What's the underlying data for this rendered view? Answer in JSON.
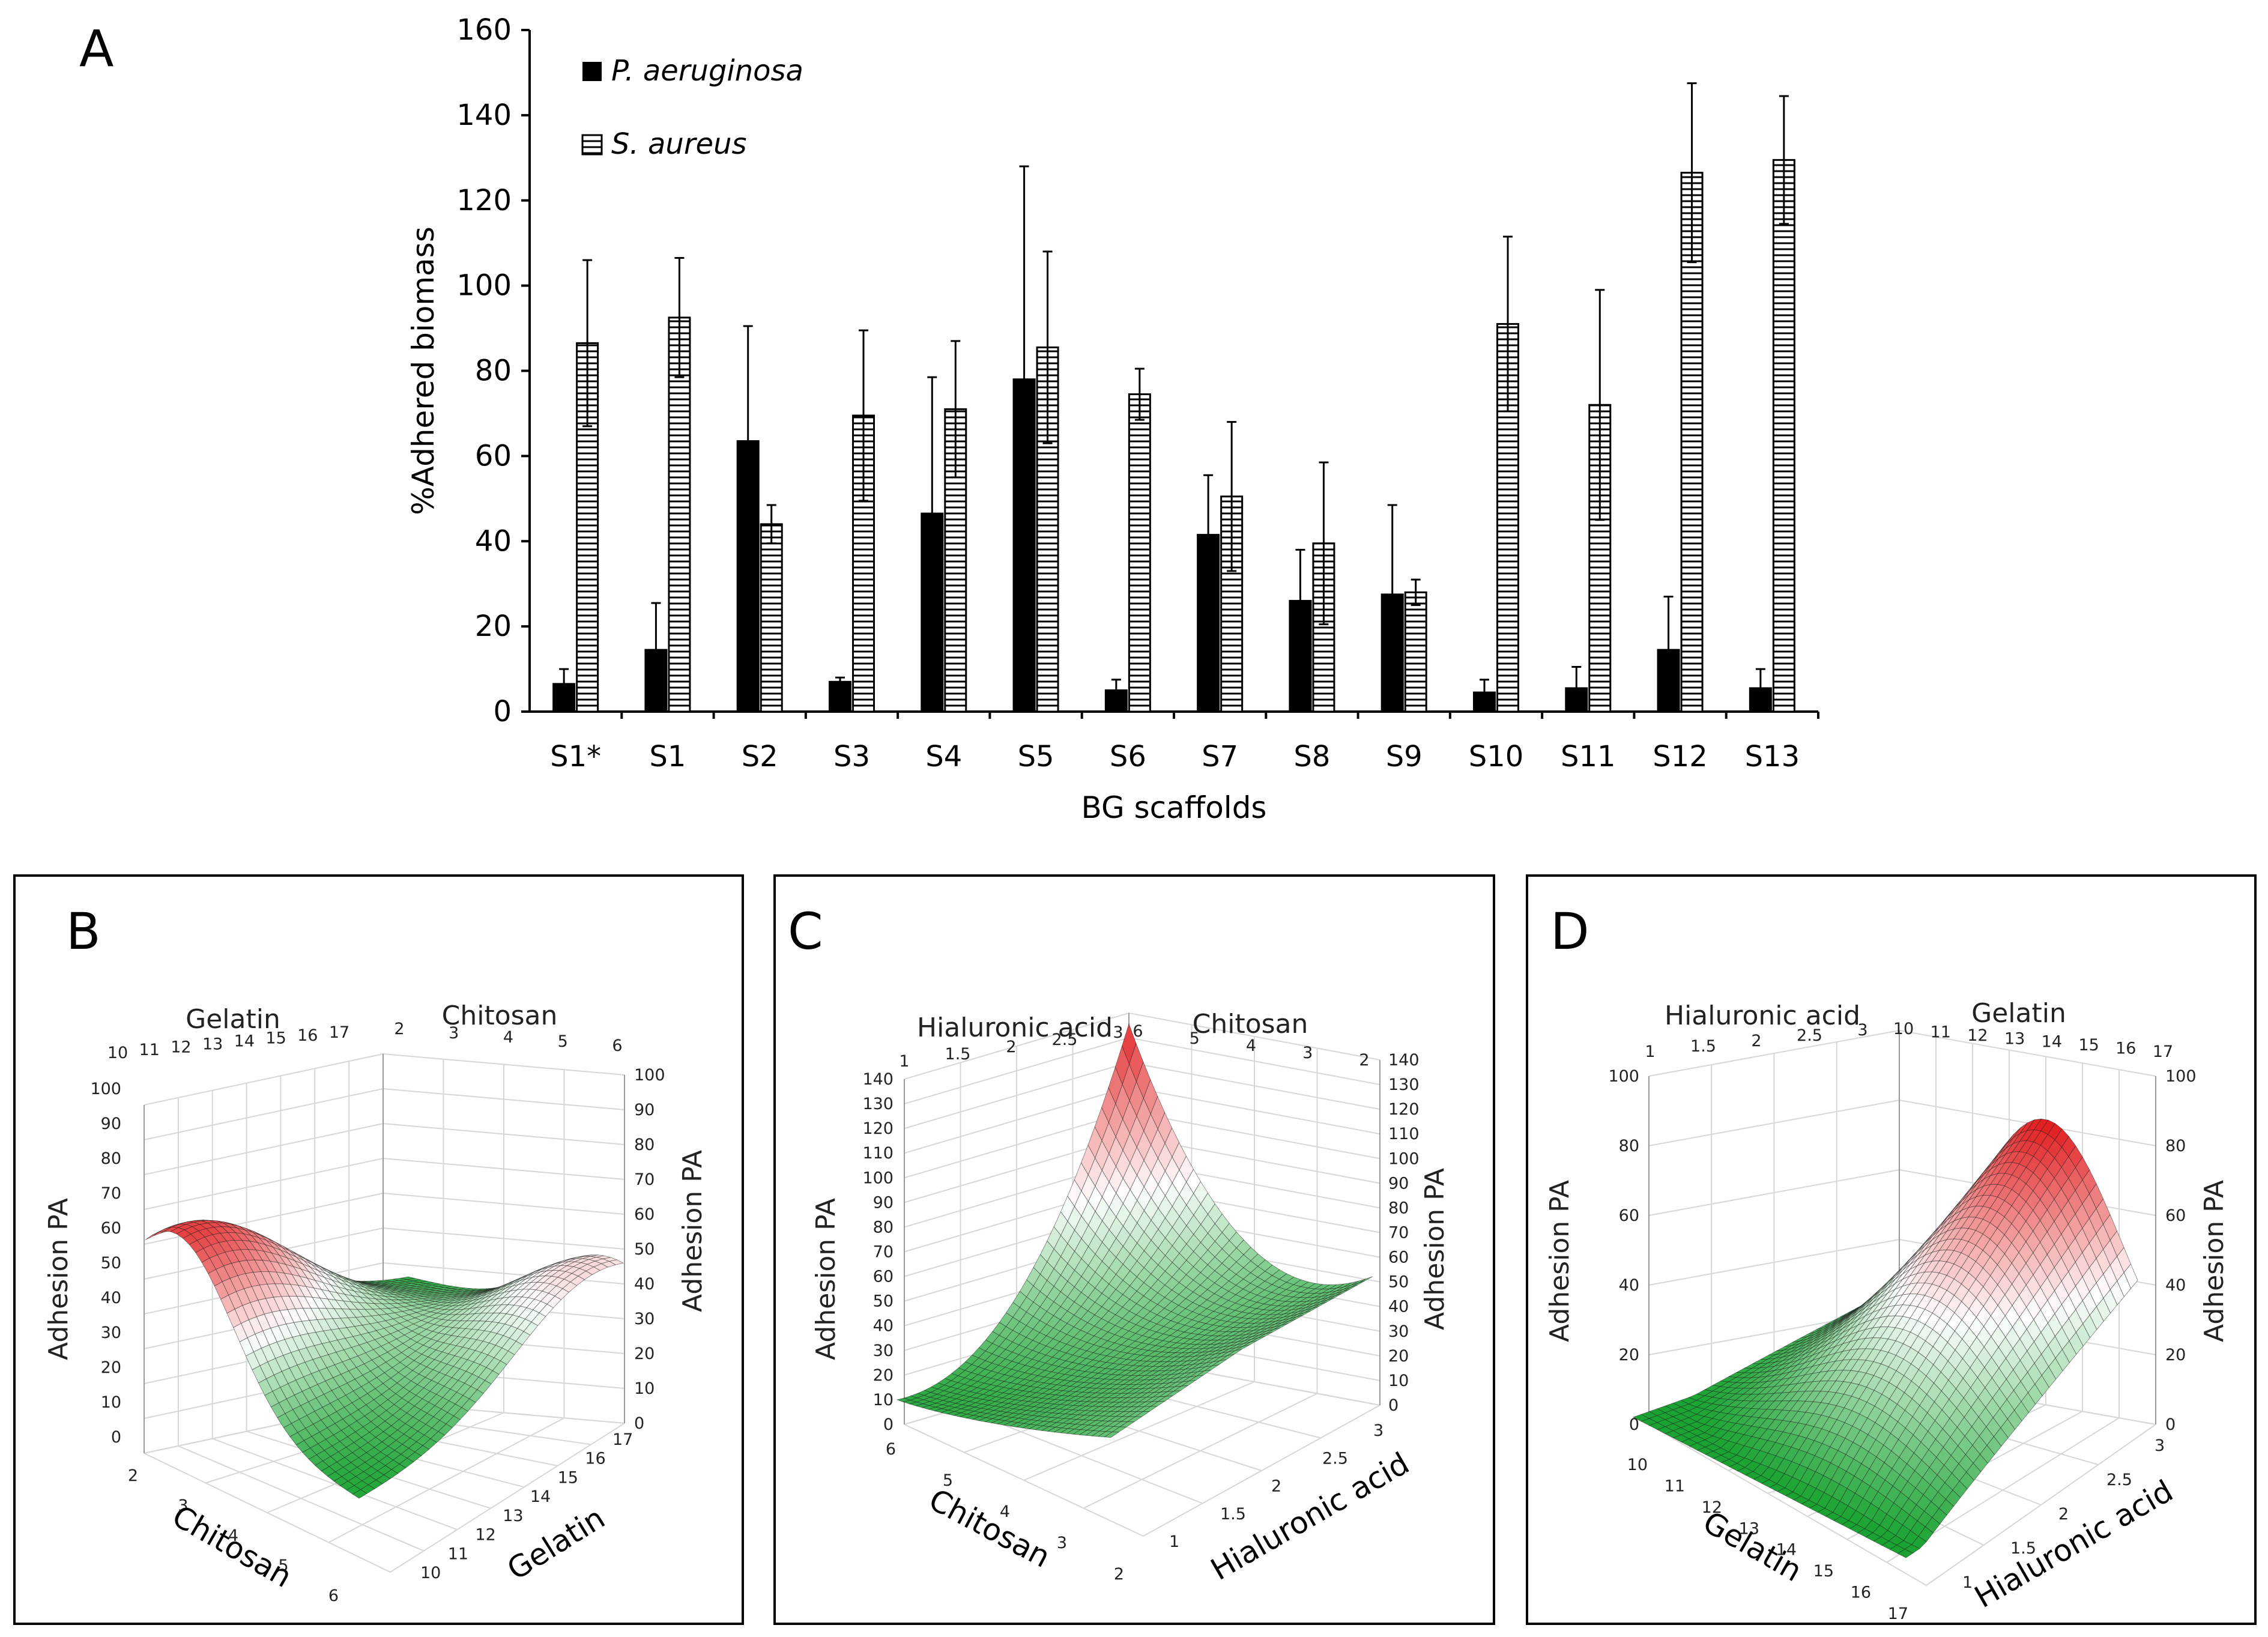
{
  "chart_data": [
    {
      "panel": "A",
      "type": "bar",
      "title": "",
      "ylabel": "%Adhered biomass",
      "xlabel": "BG scaffolds",
      "ylim": [
        0,
        160
      ],
      "yticks": [
        0,
        20,
        40,
        60,
        80,
        100,
        120,
        140,
        160
      ],
      "categories": [
        "S1*",
        "S1",
        "S2",
        "S3",
        "S4",
        "S5",
        "S6",
        "S7",
        "S8",
        "S9",
        "S10",
        "S11",
        "S12",
        "S13"
      ],
      "series": [
        {
          "name": "P. aeruginosa",
          "fill": "solid",
          "values": [
            6.5,
            14.5,
            63.5,
            7,
            46.5,
            78,
            5,
            41.5,
            26,
            27.5,
            4.5,
            5.5,
            14.5,
            5.5
          ],
          "errors": [
            3.5,
            11,
            27,
            1,
            32,
            50,
            2.5,
            14,
            12,
            21,
            3,
            5,
            12.5,
            4.5
          ]
        },
        {
          "name": "S. aureus",
          "fill": "horizontal-hatch",
          "values": [
            86.5,
            92.5,
            44,
            69.5,
            71,
            85.5,
            74.5,
            50.5,
            39.5,
            28,
            91,
            72,
            126.5,
            129.5
          ],
          "errors": [
            19.5,
            14,
            4.5,
            20,
            16,
            22.5,
            6,
            17.5,
            19,
            3,
            20.5,
            27,
            21,
            15
          ]
        }
      ],
      "legend": "top-left"
    },
    {
      "panel": "B",
      "type": "surface",
      "zlabel": "Adhesion PA",
      "axes": {
        "x1": "Gelatin",
        "x2": "Chitosan"
      },
      "gelatin_ticks": [
        "10",
        "11",
        "12",
        "13",
        "14",
        "15",
        "16",
        "17"
      ],
      "chitosan_ticks": [
        "2",
        "3",
        "4",
        "5",
        "6"
      ],
      "chitosan_ticks_desc": [
        "6",
        "5",
        "4",
        "3",
        "2"
      ],
      "z_ticks": [
        "0",
        "10",
        "20",
        "30",
        "40",
        "50",
        "60",
        "70",
        "80",
        "90",
        "100"
      ],
      "zlim": [
        0,
        100
      ],
      "peak_values": {
        "high_chitosan_low_gelatin": 55,
        "low_chitosan_high_gelatin": 35,
        "saddle_min": 0
      }
    },
    {
      "panel": "C",
      "type": "surface",
      "zlabel": "Adhesion PA",
      "axes": {
        "x1": "Hialuronic acid",
        "x2": "Chitosan"
      },
      "ha_ticks": [
        "1",
        "1.5",
        "2",
        "2.5",
        "3"
      ],
      "chitosan_ticks_desc": [
        "6",
        "5",
        "4",
        "3",
        "2"
      ],
      "z_ticks": [
        "0",
        "10",
        "20",
        "30",
        "40",
        "50",
        "60",
        "70",
        "80",
        "90",
        "100",
        "110",
        "120",
        "130",
        "140"
      ],
      "zlim": [
        0,
        140
      ],
      "peak_values": {
        "max": 140,
        "min": 5
      }
    },
    {
      "panel": "D",
      "type": "surface",
      "zlabel": "Adhesion PA",
      "axes": {
        "x1": "Hialuronic acid",
        "x2": "Gelatin"
      },
      "ha_ticks": [
        "1",
        "1.5",
        "2",
        "2.5",
        "3"
      ],
      "gelatin_ticks": [
        "10",
        "11",
        "12",
        "13",
        "14",
        "15",
        "16",
        "17"
      ],
      "z_ticks": [
        "0",
        "20",
        "40",
        "60",
        "80",
        "100"
      ],
      "zlim": [
        0,
        100
      ],
      "peak_values": {
        "max": 80,
        "min": 0
      }
    }
  ],
  "panels": {
    "a": {
      "letter": "A",
      "legend_pa": "P. aeruginosa",
      "legend_sa": "S. aureus"
    },
    "b": {
      "letter": "B"
    },
    "c": {
      "letter": "C"
    },
    "d": {
      "letter": "D"
    }
  },
  "colors": {
    "high": "#e0191b",
    "mid": "#ffffff",
    "low": "#1aa332",
    "mesh": "#1a1a1a"
  }
}
